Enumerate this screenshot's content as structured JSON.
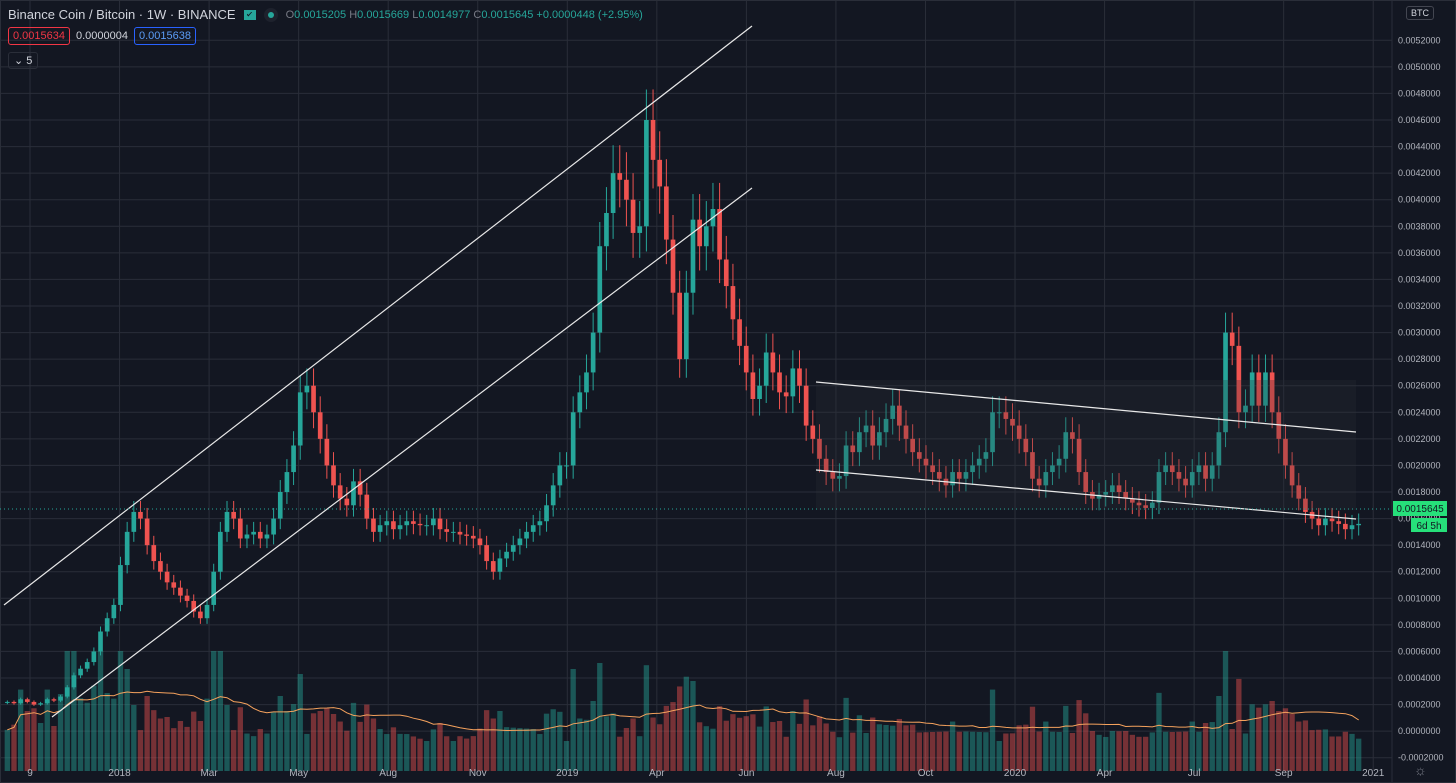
{
  "header": {
    "symbol": "Binance Coin / Bitcoin · 1W · BINANCE",
    "open_label": "O",
    "open": "0.0015205",
    "high_label": "H",
    "high": "0.0015669",
    "low_label": "L",
    "low": "0.0014977",
    "close_label": "C",
    "close": "0.0015645",
    "change": "+0.0000448 (+2.95%)",
    "sell_price": "0.0015634",
    "spread": "0.0000004",
    "buy_price": "0.0015638",
    "indicators_collapse": "⌄ 5",
    "currency": "BTC"
  },
  "colors": {
    "up": "#26a69a",
    "down": "#ef5350",
    "grid": "#2a2e39",
    "bg": "#131722",
    "ma": "#f5a25d",
    "price_tag": "#26e07a"
  },
  "chart_data": {
    "type": "candlestick",
    "interval": "1W",
    "ylim": [
      -0.0003,
      0.0053
    ],
    "y_ticks": [
      "0.0052000",
      "0.0050000",
      "0.0048000",
      "0.0046000",
      "0.0044000",
      "0.0042000",
      "0.0040000",
      "0.0038000",
      "0.0036000",
      "0.0034000",
      "0.0032000",
      "0.0030000",
      "0.0028000",
      "0.0026000",
      "0.0024000",
      "0.0022000",
      "0.0020000",
      "0.0018000",
      "0.0016000",
      "0.0014000",
      "0.0012000",
      "0.0010000",
      "0.0008000",
      "0.0006000",
      "0.0004000",
      "0.0002000",
      "0.0000000",
      "-0.0002000"
    ],
    "x_ticks": [
      "9",
      "2018",
      "Mar",
      "May",
      "Aug",
      "Nov",
      "2019",
      "Apr",
      "Jun",
      "Aug",
      "Oct",
      "2020",
      "Apr",
      "Jul",
      "Sep",
      "2021"
    ],
    "last_price": "0.0015645",
    "countdown": "6d 5h",
    "closes": [
      0.00022,
      0.00021,
      0.00024,
      0.00022,
      0.0002,
      0.00021,
      0.00024,
      0.00023,
      0.00026,
      0.00033,
      0.00042,
      0.00047,
      0.00052,
      0.0006,
      0.00075,
      0.00085,
      0.00095,
      0.00125,
      0.0015,
      0.00165,
      0.0016,
      0.0014,
      0.00128,
      0.0012,
      0.00112,
      0.00108,
      0.00102,
      0.00098,
      0.0009,
      0.00085,
      0.00095,
      0.0012,
      0.0015,
      0.00165,
      0.0016,
      0.00145,
      0.00148,
      0.0015,
      0.00145,
      0.00148,
      0.0016,
      0.0018,
      0.00195,
      0.00215,
      0.00255,
      0.0026,
      0.0024,
      0.0022,
      0.002,
      0.00185,
      0.00175,
      0.0017,
      0.00188,
      0.00178,
      0.0016,
      0.0015,
      0.00155,
      0.00158,
      0.00152,
      0.00155,
      0.00158,
      0.00156,
      0.00155,
      0.00155,
      0.0016,
      0.00152,
      0.0015,
      0.0015,
      0.00148,
      0.00147,
      0.00145,
      0.0014,
      0.00128,
      0.0012,
      0.0013,
      0.00135,
      0.0014,
      0.00145,
      0.0015,
      0.00155,
      0.00158,
      0.0017,
      0.00185,
      0.002,
      0.002,
      0.0024,
      0.00255,
      0.0027,
      0.003,
      0.00365,
      0.0039,
      0.0042,
      0.00415,
      0.004,
      0.00375,
      0.0038,
      0.0046,
      0.0043,
      0.0041,
      0.0037,
      0.0033,
      0.0028,
      0.0033,
      0.00385,
      0.00365,
      0.0038,
      0.00393,
      0.00355,
      0.00335,
      0.0031,
      0.0029,
      0.0027,
      0.0025,
      0.0026,
      0.00285,
      0.0027,
      0.00255,
      0.00252,
      0.00273,
      0.0026,
      0.0023,
      0.0022,
      0.00205,
      0.00195,
      0.0019,
      0.00192,
      0.00215,
      0.0021,
      0.00225,
      0.0023,
      0.00215,
      0.00225,
      0.00235,
      0.00245,
      0.0023,
      0.0022,
      0.0021,
      0.00205,
      0.002,
      0.00195,
      0.0019,
      0.00185,
      0.00195,
      0.0019,
      0.00195,
      0.002,
      0.00205,
      0.0021,
      0.0024,
      0.0024,
      0.00235,
      0.0023,
      0.0022,
      0.0021,
      0.0019,
      0.00185,
      0.00195,
      0.002,
      0.00205,
      0.00225,
      0.0022,
      0.00195,
      0.0018,
      0.00175,
      0.00178,
      0.0018,
      0.00185,
      0.0018,
      0.00175,
      0.00172,
      0.0017,
      0.00168,
      0.00172,
      0.00195,
      0.002,
      0.00195,
      0.0019,
      0.00185,
      0.00195,
      0.002,
      0.0019,
      0.002,
      0.00225,
      0.003,
      0.0029,
      0.0024,
      0.00245,
      0.0027,
      0.00245,
      0.0027,
      0.0024,
      0.0022,
      0.002,
      0.00185,
      0.00175,
      0.00165,
      0.0016,
      0.00155,
      0.0016,
      0.00158,
      0.00156,
      0.00152,
      0.00155,
      0.00156
    ]
  },
  "annotations": {
    "channel_lines": "ascending channel 2018–2019, descending channel 2019–2020"
  }
}
